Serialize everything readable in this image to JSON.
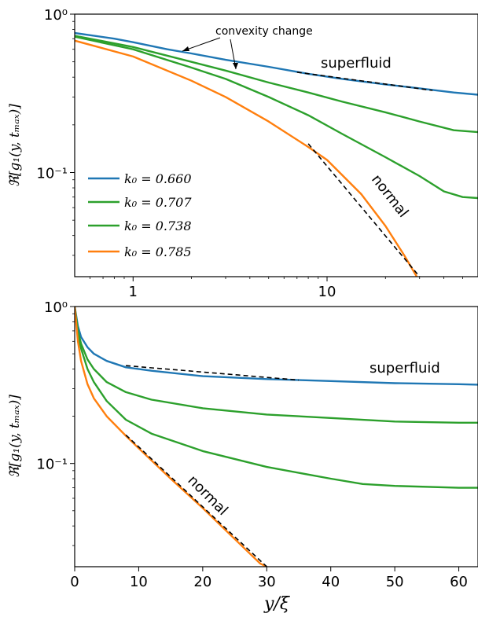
{
  "colors": {
    "k0_0660": "#1f77b4",
    "k0_0707": "#2ca02c",
    "k0_0738": "#2ca02c",
    "k0_0785": "#ff7f0e",
    "fit": "#000000"
  },
  "chart_data": [
    {
      "type": "line",
      "panel": "top",
      "xscale": "log",
      "yscale": "log",
      "xlim": [
        0.5,
        60
      ],
      "ylim": [
        0.022,
        1.0
      ],
      "x_ticks": [
        {
          "value": 1,
          "label": "1"
        },
        {
          "value": 10,
          "label": "10"
        }
      ],
      "y_ticks": [
        {
          "value": 1.0,
          "label": "10⁰"
        },
        {
          "value": 0.1,
          "label": "10⁻¹"
        }
      ],
      "ylabel": "ℜ[g₁(y, tₘₐₓ)]",
      "xlabel": "",
      "grid": false,
      "legend_position": "center-left",
      "series": [
        {
          "name": "k₀ = 0.660",
          "color_key": "k0_0660",
          "x": [
            0.5,
            0.8,
            1,
            1.5,
            2,
            3,
            5,
            8,
            12,
            20,
            30,
            45,
            60
          ],
          "y": [
            0.76,
            0.7,
            0.665,
            0.6,
            0.565,
            0.515,
            0.465,
            0.42,
            0.39,
            0.36,
            0.34,
            0.32,
            0.31
          ]
        },
        {
          "name": "k₀ = 0.707",
          "color_key": "k0_0707",
          "x": [
            0.5,
            1,
            2,
            3,
            5,
            8,
            12,
            20,
            30,
            45,
            60
          ],
          "y": [
            0.73,
            0.62,
            0.5,
            0.44,
            0.37,
            0.32,
            0.28,
            0.24,
            0.21,
            0.185,
            0.18
          ]
        },
        {
          "name": "k₀ = 0.738",
          "color_key": "k0_0738",
          "x": [
            0.5,
            1,
            2,
            3,
            5,
            8,
            12,
            20,
            30,
            40,
            50,
            60
          ],
          "y": [
            0.72,
            0.6,
            0.46,
            0.39,
            0.3,
            0.23,
            0.175,
            0.125,
            0.095,
            0.076,
            0.07,
            0.069
          ]
        },
        {
          "name": "k₀ = 0.785",
          "color_key": "k0_0785",
          "x": [
            0.5,
            1,
            2,
            3,
            5,
            8,
            10,
            15,
            20,
            25,
            29
          ],
          "y": [
            0.68,
            0.54,
            0.38,
            0.3,
            0.21,
            0.145,
            0.12,
            0.073,
            0.046,
            0.03,
            0.022
          ]
        }
      ],
      "fits": [
        {
          "x": [
            7,
            35
          ],
          "y": [
            0.43,
            0.33
          ]
        },
        {
          "x": [
            8,
            30
          ],
          "y": [
            0.152,
            0.022
          ]
        }
      ],
      "annotations": {
        "convexity": "convexity change",
        "superfluid": "superfluid",
        "normal": "normal"
      }
    },
    {
      "type": "line",
      "panel": "bottom",
      "xscale": "linear",
      "yscale": "log",
      "xlim": [
        0,
        63
      ],
      "ylim": [
        0.022,
        1.0
      ],
      "x_ticks": [
        {
          "value": 0,
          "label": "0"
        },
        {
          "value": 10,
          "label": "10"
        },
        {
          "value": 20,
          "label": "20"
        },
        {
          "value": 30,
          "label": "30"
        },
        {
          "value": 40,
          "label": "40"
        },
        {
          "value": 50,
          "label": "50"
        },
        {
          "value": 60,
          "label": "60"
        }
      ],
      "y_ticks": [
        {
          "value": 1.0,
          "label": "10⁰"
        },
        {
          "value": 0.1,
          "label": "10⁻¹"
        }
      ],
      "xlabel": "y/ξ",
      "ylabel": "ℜ[g₁(y, tₘₐₓ)]",
      "grid": false,
      "series": [
        {
          "name": "k₀ = 0.660",
          "color_key": "k0_0660",
          "x": [
            0,
            0.5,
            1,
            2,
            3,
            5,
            8,
            12,
            20,
            30,
            40,
            50,
            60,
            63
          ],
          "y": [
            1.0,
            0.75,
            0.64,
            0.55,
            0.5,
            0.45,
            0.41,
            0.39,
            0.36,
            0.345,
            0.335,
            0.325,
            0.32,
            0.318
          ]
        },
        {
          "name": "k₀ = 0.707",
          "color_key": "k0_0707",
          "x": [
            0,
            0.5,
            1,
            2,
            3,
            5,
            8,
            12,
            20,
            30,
            40,
            50,
            60,
            63
          ],
          "y": [
            1.0,
            0.7,
            0.58,
            0.46,
            0.4,
            0.33,
            0.285,
            0.255,
            0.225,
            0.205,
            0.195,
            0.185,
            0.182,
            0.182
          ]
        },
        {
          "name": "k₀ = 0.738",
          "color_key": "k0_0738",
          "x": [
            0,
            0.5,
            1,
            2,
            3,
            5,
            8,
            12,
            20,
            30,
            40,
            45,
            50,
            60,
            63
          ],
          "y": [
            1.0,
            0.67,
            0.54,
            0.4,
            0.33,
            0.25,
            0.19,
            0.155,
            0.12,
            0.095,
            0.08,
            0.074,
            0.072,
            0.07,
            0.07
          ]
        },
        {
          "name": "k₀ = 0.785",
          "color_key": "k0_0785",
          "x": [
            0,
            0.5,
            1,
            2,
            3,
            5,
            8,
            10,
            15,
            20,
            25,
            29,
            30
          ],
          "y": [
            1.0,
            0.6,
            0.45,
            0.32,
            0.26,
            0.2,
            0.15,
            0.125,
            0.08,
            0.052,
            0.033,
            0.023,
            0.022
          ]
        }
      ],
      "fits": [
        {
          "x": [
            8,
            35
          ],
          "y": [
            0.42,
            0.34
          ]
        },
        {
          "x": [
            8,
            30
          ],
          "y": [
            0.152,
            0.022
          ]
        }
      ],
      "annotations": {
        "superfluid": "superfluid",
        "normal": "normal"
      }
    }
  ]
}
